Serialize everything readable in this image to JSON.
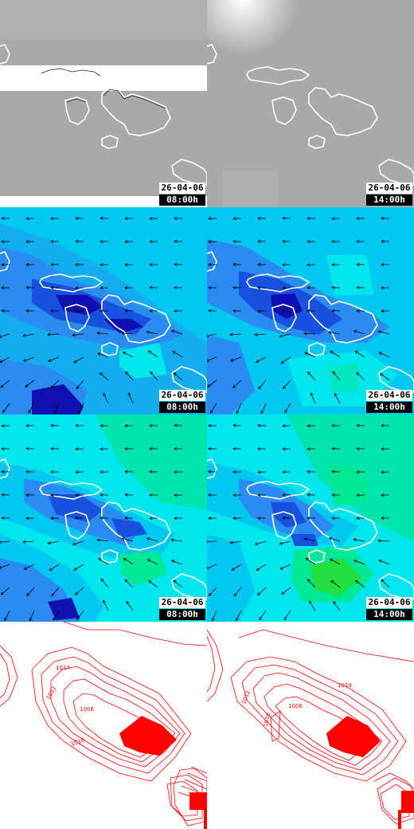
{
  "panels": [
    {
      "row": "satellite",
      "col": 0,
      "date": "26-04-06",
      "time": "08:00h"
    },
    {
      "row": "satellite",
      "col": 1,
      "date": "26-04-06",
      "time": "14:00h"
    },
    {
      "row": "wind-a",
      "col": 0,
      "date": "26-04-06",
      "time": "08:00h"
    },
    {
      "row": "wind-a",
      "col": 1,
      "date": "26-04-06",
      "time": "14:00h"
    },
    {
      "row": "wind-b",
      "col": 0,
      "date": "26-04-06",
      "time": "08:00h"
    },
    {
      "row": "wind-b",
      "col": 1,
      "date": "26-04-06",
      "time": "14:00h"
    }
  ],
  "pressure_labels": {
    "left": [
      "1014",
      "1012",
      "1006",
      "1010"
    ],
    "right": [
      "1014",
      "1012",
      "1006",
      "1010"
    ]
  },
  "colors": {
    "satellite_gray": "#a9a9a9",
    "cloud_white": "#ffffff",
    "wind_light": "#00c8f0",
    "wind_cyan": "#00e6ee",
    "wind_mid": "#2a8cf0",
    "wind_blue": "#1850e0",
    "wind_dark": "#1010b0",
    "wind_green": "#00e896",
    "isobar_red": "#ff0000",
    "coastline": "#ffffff"
  }
}
